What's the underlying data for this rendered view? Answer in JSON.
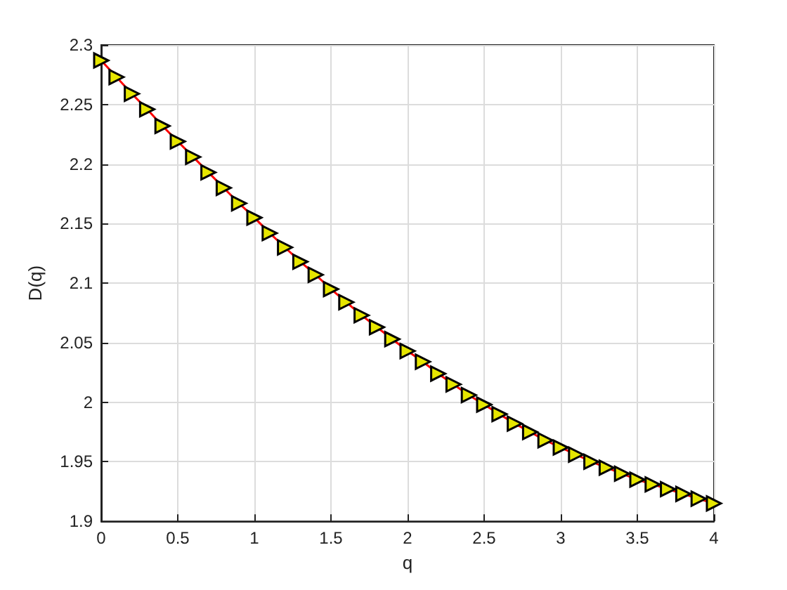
{
  "chart_data": {
    "type": "line",
    "xlabel": "q",
    "ylabel": "D(q)",
    "x": [
      0,
      0.1,
      0.2,
      0.3,
      0.4,
      0.5,
      0.6,
      0.7,
      0.8,
      0.9,
      1,
      1.1,
      1.2,
      1.3,
      1.4,
      1.5,
      1.6,
      1.7,
      1.8,
      1.9,
      2,
      2.1,
      2.2,
      2.3,
      2.4,
      2.5,
      2.6,
      2.7,
      2.8,
      2.9,
      3,
      3.1,
      3.2,
      3.3,
      3.4,
      3.5,
      3.6,
      3.7,
      3.8,
      3.9,
      4
    ],
    "series": [
      {
        "color": "#ff0000",
        "values": [
          2.287,
          2.273,
          2.259,
          2.246,
          2.232,
          2.219,
          2.206,
          2.193,
          2.18,
          2.167,
          2.155,
          2.142,
          2.13,
          2.118,
          2.107,
          2.095,
          2.084,
          2.073,
          2.063,
          2.053,
          2.043,
          2.034,
          2.024,
          2.015,
          2.006,
          1.998,
          1.99,
          1.982,
          1.975,
          1.968,
          1.962,
          1.956,
          1.95,
          1.945,
          1.94,
          1.935,
          1.931,
          1.927,
          1.923,
          1.919,
          1.915
        ]
      }
    ],
    "xlim": [
      0,
      4
    ],
    "xticks": [
      0,
      0.5,
      1,
      1.5,
      2,
      2.5,
      3,
      3.5,
      4
    ],
    "ylim": [
      1.9,
      2.3
    ],
    "yticks": [
      1.9,
      1.95,
      2,
      2.05,
      2.1,
      2.15,
      2.2,
      2.25,
      2.3
    ],
    "grid": true,
    "marker": "triangle",
    "line_style": "solid"
  }
}
